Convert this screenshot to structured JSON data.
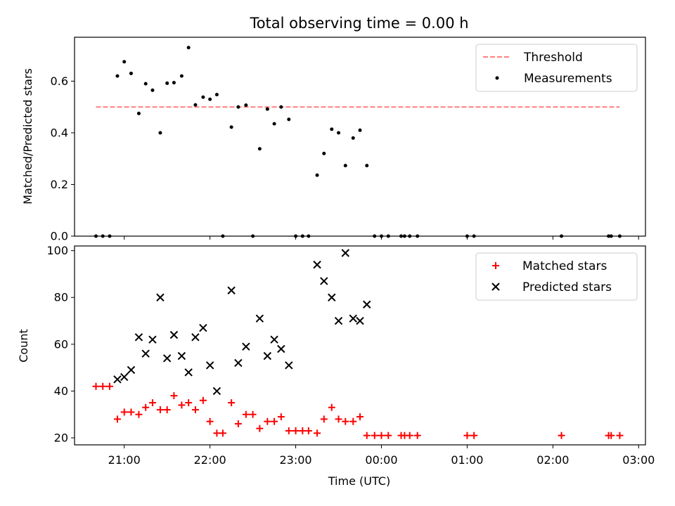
{
  "chart_data": [
    {
      "type": "scatter",
      "title": "Total observing time = 0.00 h",
      "xlabel": "",
      "ylabel": "Matched/Predicted stars",
      "xlim": [
        20.42,
        27.08
      ],
      "ylim": [
        0,
        0.77
      ],
      "yticks": [
        0.0,
        0.2,
        0.4,
        0.6
      ],
      "ytick_labels": [
        "0.0",
        "0.2",
        "0.4",
        "0.6"
      ],
      "grid": false,
      "legend": {
        "position": "top-right",
        "entries": [
          {
            "label": "Threshold",
            "style": "dashed-line",
            "color": "#ff7f7f"
          },
          {
            "label": "Measurements",
            "style": "dot",
            "color": "#000000"
          }
        ]
      },
      "threshold": {
        "name": "Threshold",
        "y": 0.5,
        "x_start": 20.67,
        "x_end": 26.78
      },
      "series": [
        {
          "name": "Measurements",
          "x": [
            20.67,
            20.75,
            20.83,
            20.92,
            21.0,
            21.08,
            21.17,
            21.25,
            21.33,
            21.42,
            21.5,
            21.58,
            21.67,
            21.75,
            21.83,
            21.92,
            22.0,
            22.08,
            22.15,
            22.25,
            22.33,
            22.42,
            22.5,
            22.58,
            22.67,
            22.75,
            22.83,
            22.92,
            23.0,
            23.08,
            23.15,
            23.25,
            23.33,
            23.42,
            23.5,
            23.58,
            23.67,
            23.75,
            23.83,
            23.92,
            24.0,
            24.08,
            24.23,
            24.27,
            24.33,
            24.42,
            25.0,
            25.08,
            26.1,
            26.65,
            26.68,
            26.78
          ],
          "y": [
            0,
            0,
            0,
            0.62,
            0.675,
            0.63,
            0.475,
            0.59,
            0.565,
            0.4,
            0.592,
            0.594,
            0.62,
            0.73,
            0.508,
            0.538,
            0.53,
            0.548,
            0,
            0.422,
            0.5,
            0.507,
            0,
            0.338,
            0.492,
            0.435,
            0.5,
            0.452,
            0,
            0,
            0,
            0.236,
            0.32,
            0.414,
            0.4,
            0.273,
            0.38,
            0.41,
            0.273,
            0,
            0,
            0,
            0,
            0,
            0,
            0,
            0,
            0,
            0,
            0,
            0,
            0
          ],
          "color": "#000000",
          "marker": "dot"
        }
      ]
    },
    {
      "type": "scatter",
      "title": "",
      "xlabel": "Time (UTC)",
      "ylabel": "Count",
      "xlim": [
        20.42,
        27.08
      ],
      "ylim": [
        17,
        102
      ],
      "xticks": [
        21,
        22,
        23,
        24,
        25,
        26,
        27
      ],
      "xtick_labels": [
        "21:00",
        "22:00",
        "23:00",
        "00:00",
        "01:00",
        "02:00",
        "03:00"
      ],
      "yticks": [
        20,
        40,
        60,
        80,
        100
      ],
      "ytick_labels": [
        "20",
        "40",
        "60",
        "80",
        "100"
      ],
      "grid": false,
      "legend": {
        "position": "top-right",
        "entries": [
          {
            "label": "Matched stars",
            "style": "plus",
            "color": "#ff0000"
          },
          {
            "label": "Predicted stars",
            "style": "x",
            "color": "#000000"
          }
        ]
      },
      "series": [
        {
          "name": "Matched stars",
          "x": [
            20.67,
            20.75,
            20.83,
            20.92,
            21.0,
            21.08,
            21.17,
            21.25,
            21.33,
            21.42,
            21.5,
            21.58,
            21.67,
            21.75,
            21.83,
            21.92,
            22.0,
            22.08,
            22.15,
            22.25,
            22.33,
            22.42,
            22.5,
            22.58,
            22.67,
            22.75,
            22.83,
            22.92,
            23.0,
            23.08,
            23.15,
            23.25,
            23.33,
            23.42,
            23.5,
            23.58,
            23.67,
            23.75,
            23.83,
            23.92,
            24.0,
            24.08,
            24.23,
            24.27,
            24.33,
            24.42,
            25.0,
            25.08,
            26.1,
            26.65,
            26.68,
            26.78
          ],
          "y": [
            42,
            42,
            42,
            28,
            31,
            31,
            30,
            33,
            35,
            32,
            32,
            38,
            34,
            35,
            32,
            36,
            27,
            22,
            22,
            35,
            26,
            30,
            30,
            24,
            27,
            27,
            29,
            23,
            23,
            23,
            23,
            22,
            28,
            33,
            28,
            27,
            27,
            29,
            21,
            21,
            21,
            21,
            21,
            21,
            21,
            21,
            21,
            21,
            21,
            21,
            21,
            21
          ],
          "color": "#ff0000",
          "marker": "plus"
        },
        {
          "name": "Predicted stars",
          "x": [
            20.92,
            21.0,
            21.08,
            21.17,
            21.25,
            21.33,
            21.42,
            21.5,
            21.58,
            21.67,
            21.75,
            21.83,
            21.92,
            22.0,
            22.08,
            22.25,
            22.33,
            22.42,
            22.58,
            22.67,
            22.75,
            22.83,
            22.92,
            23.25,
            23.33,
            23.42,
            23.5,
            23.58,
            23.67,
            23.75,
            23.83
          ],
          "y": [
            45,
            46,
            49,
            63,
            56,
            62,
            80,
            54,
            64,
            55,
            48,
            63,
            67,
            51,
            40,
            83,
            52,
            59,
            71,
            55,
            62,
            58,
            51,
            94,
            87,
            80,
            70,
            99,
            71,
            70,
            77
          ],
          "color": "#000000",
          "marker": "x"
        }
      ]
    }
  ]
}
